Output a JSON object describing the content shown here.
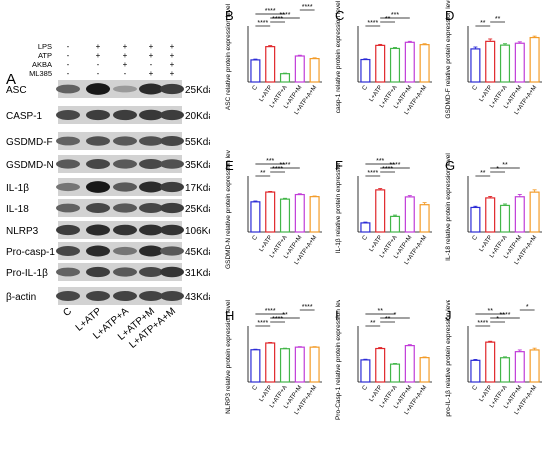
{
  "figure": {
    "panel_a": {
      "letter": "A",
      "conditions": [
        "LPS",
        "ATP",
        "AKBA",
        "ML385"
      ],
      "signs": [
        [
          "-",
          "+",
          "+",
          "+",
          "+"
        ],
        [
          "-",
          "+",
          "+",
          "+",
          "+"
        ],
        [
          "-",
          "-",
          "+",
          "-",
          "+"
        ],
        [
          "-",
          "-",
          "-",
          "+",
          "+"
        ]
      ],
      "bands": [
        {
          "name": "ASC",
          "mw": "25Kda",
          "intensity": [
            0.55,
            0.95,
            0.25,
            0.85,
            0.75
          ]
        },
        {
          "name": "CASP-1",
          "mw": "20Kda",
          "intensity": [
            0.7,
            0.75,
            0.75,
            0.78,
            0.75
          ]
        },
        {
          "name": "GSDMD-F",
          "mw": "55Kda",
          "intensity": [
            0.55,
            0.65,
            0.6,
            0.65,
            0.7
          ]
        },
        {
          "name": "GSDMD-N",
          "mw": "35Kda",
          "intensity": [
            0.6,
            0.7,
            0.6,
            0.7,
            0.65
          ]
        },
        {
          "name": "IL-1β",
          "mw": "17Kda",
          "intensity": [
            0.45,
            0.95,
            0.6,
            0.85,
            0.75
          ]
        },
        {
          "name": "IL-18",
          "mw": "25Kda",
          "intensity": [
            0.55,
            0.7,
            0.6,
            0.7,
            0.75
          ]
        },
        {
          "name": "NLRP3",
          "mw": "106Kda",
          "intensity": [
            0.75,
            0.85,
            0.8,
            0.82,
            0.8
          ]
        },
        {
          "name": "Pro-casp-1",
          "mw": "45Kda",
          "intensity": [
            0.7,
            0.85,
            0.45,
            0.85,
            0.6
          ]
        },
        {
          "name": "Pro-IL-1β",
          "mw": "31Kda",
          "intensity": [
            0.55,
            0.75,
            0.6,
            0.7,
            0.8
          ]
        },
        {
          "name": "β-actin",
          "mw": "43Kda",
          "intensity": [
            0.7,
            0.72,
            0.72,
            0.72,
            0.72
          ]
        }
      ],
      "lane_labels": [
        "C",
        "L+ATP",
        "L+ATP+A",
        "L+ATP+M",
        "L+ATP+A+M"
      ]
    },
    "colors": [
      "#2b2bd6",
      "#e0262a",
      "#43b649",
      "#c13bd8",
      "#f39c2a"
    ]
  },
  "chart_data": [
    {
      "type": "bar",
      "letter": "B",
      "ylabel": "ASC relative protein expression level",
      "categories": [
        "C",
        "L+ATP",
        "L+ATP+A",
        "L+ATP+M",
        "L+ATP+A+M"
      ],
      "values": [
        0.85,
        1.36,
        0.32,
        1.0,
        0.9
      ],
      "errors": [
        0.03,
        0.04,
        0.02,
        0.03,
        0.03
      ],
      "ylim": [
        0,
        2.0
      ],
      "sig": [
        "****",
        "****",
        "****",
        "****",
        "****"
      ]
    },
    {
      "type": "bar",
      "letter": "C",
      "ylabel": "casp-1 relative protein expression level",
      "categories": [
        "C",
        "L+ATP",
        "L+ATP+A",
        "L+ATP+M",
        "L+ATP+A+M"
      ],
      "values": [
        0.95,
        1.55,
        1.42,
        1.68,
        1.58
      ],
      "errors": [
        0.03,
        0.04,
        0.04,
        0.04,
        0.04
      ],
      "ylim": [
        0,
        2.2
      ],
      "sig": [
        "****",
        "**",
        "***"
      ]
    },
    {
      "type": "bar",
      "letter": "D",
      "ylabel": "GSDMD-F relative protein expression level",
      "categories": [
        "C",
        "L+ATP",
        "L+ATP+A",
        "L+ATP+M",
        "L+ATP+A+M"
      ],
      "values": [
        0.7,
        0.86,
        0.78,
        0.82,
        0.94
      ],
      "errors": [
        0.04,
        0.05,
        0.03,
        0.03,
        0.03
      ],
      "ylim": [
        0,
        1.1
      ],
      "sig": [
        "**",
        "**"
      ]
    },
    {
      "type": "bar",
      "letter": "E",
      "ylabel": "GSDMD-N relative protein expression level",
      "categories": [
        "C",
        "L+ATP",
        "L+ATP+A",
        "L+ATP+M",
        "L+ATP+A+M"
      ],
      "values": [
        1.45,
        1.92,
        1.58,
        1.8,
        1.7
      ],
      "errors": [
        0.04,
        0.03,
        0.04,
        0.04,
        0.03
      ],
      "ylim": [
        0,
        2.5
      ],
      "sig": [
        "**",
        "****",
        "****",
        "***"
      ]
    },
    {
      "type": "bar",
      "letter": "F",
      "ylabel": "IL-1β relative protein expression",
      "categories": [
        "C",
        "L+ATP",
        "L+ATP+A",
        "L+ATP+M",
        "L+ATP+A+M"
      ],
      "values": [
        0.35,
        1.62,
        0.6,
        1.35,
        1.05
      ],
      "errors": [
        0.03,
        0.05,
        0.05,
        0.05,
        0.08
      ],
      "ylim": [
        0,
        2.0
      ],
      "sig": [
        "****",
        "****",
        "****",
        "***"
      ]
    },
    {
      "type": "bar",
      "letter": "G",
      "ylabel": "IL-18 relative protein expression level",
      "categories": [
        "C",
        "L+ATP",
        "L+ATP+A",
        "L+ATP+M",
        "L+ATP+A+M"
      ],
      "values": [
        0.85,
        1.18,
        0.92,
        1.22,
        1.38
      ],
      "errors": [
        0.04,
        0.05,
        0.05,
        0.08,
        0.08
      ],
      "ylim": [
        0,
        1.8
      ],
      "sig": [
        "**",
        "*",
        "**"
      ]
    },
    {
      "type": "bar",
      "letter": "H",
      "ylabel": "NLRP3 relative protein expression level",
      "categories": [
        "C",
        "L+ATP",
        "L+ATP+A",
        "L+ATP+M",
        "L+ATP+A+M"
      ],
      "values": [
        0.62,
        0.75,
        0.64,
        0.67,
        0.67
      ],
      "errors": [
        0.01,
        0.01,
        0.01,
        0.01,
        0.01
      ],
      "ylim": [
        0,
        1.0
      ],
      "sig": [
        "****",
        "****",
        "**",
        "****",
        "****"
      ]
    },
    {
      "type": "bar",
      "letter": "I",
      "ylabel": "Pro-Casp-1 relative protein expression level",
      "categories": [
        "C",
        "L+ATP",
        "L+ATP+A",
        "L+ATP+M",
        "L+ATP+A+M"
      ],
      "values": [
        0.68,
        1.03,
        0.55,
        1.12,
        0.75
      ],
      "errors": [
        0.02,
        0.03,
        0.02,
        0.03,
        0.02
      ],
      "ylim": [
        0,
        1.6
      ],
      "sig": [
        "**",
        "**",
        "*",
        "**"
      ]
    },
    {
      "type": "bar",
      "letter": "J",
      "ylabel": "pro-IL-1β relative protein expression level",
      "categories": [
        "C",
        "L+ATP",
        "L+ATP+A",
        "L+ATP+M",
        "L+ATP+A+M"
      ],
      "values": [
        0.25,
        0.46,
        0.28,
        0.35,
        0.37
      ],
      "errors": [
        0.01,
        0.01,
        0.01,
        0.02,
        0.02
      ],
      "ylim": [
        0,
        0.6
      ],
      "sig": [
        "****",
        "*",
        "****",
        "**",
        "*"
      ]
    }
  ]
}
